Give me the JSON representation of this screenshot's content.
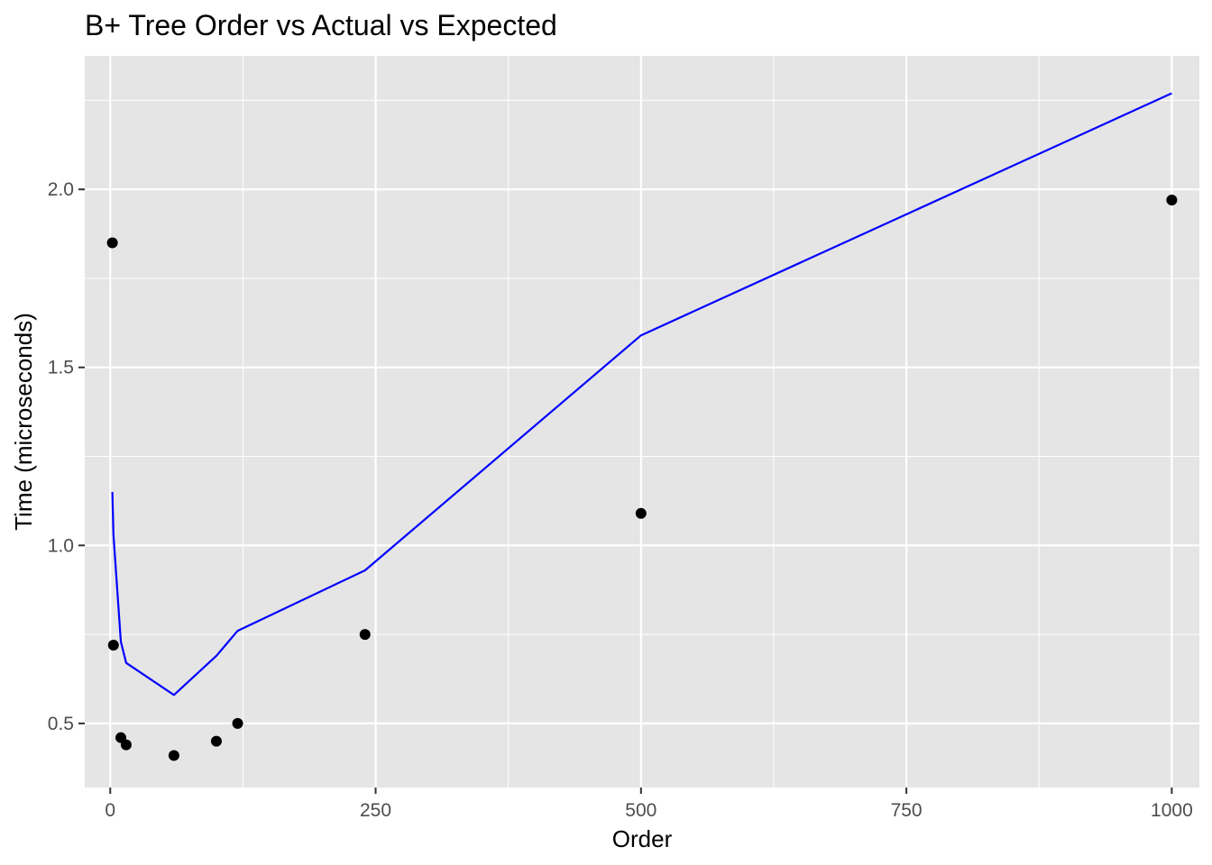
{
  "chart_data": {
    "type": "scatter",
    "title": "B+ Tree Order vs Actual vs Expected",
    "xlabel": "Order",
    "ylabel": "Time (microseconds)",
    "xlim": [
      -24,
      1026
    ],
    "ylim": [
      0.32,
      2.375
    ],
    "x_ticks": [
      0,
      250,
      500,
      750,
      1000
    ],
    "x_tick_labels": [
      "0",
      "250",
      "500",
      "750",
      "1000"
    ],
    "y_ticks": [
      0.5,
      1.0,
      1.5,
      2.0
    ],
    "y_tick_labels": [
      "0.5",
      "1.0",
      "1.5",
      "2.0"
    ],
    "grid": true,
    "panel_background": "#e5e5e5",
    "grid_color": "#ffffff",
    "series": [
      {
        "kind": "points",
        "color": "#000000",
        "x": [
          2,
          3,
          10,
          15,
          60,
          100,
          120,
          240,
          500,
          1000
        ],
        "y": [
          1.85,
          0.72,
          0.46,
          0.44,
          0.41,
          0.45,
          0.5,
          0.75,
          1.09,
          1.97
        ]
      },
      {
        "kind": "line",
        "color": "#0000ff",
        "x": [
          2,
          3,
          10,
          15,
          60,
          100,
          120,
          240,
          500,
          1000
        ],
        "y": [
          1.15,
          1.03,
          0.73,
          0.67,
          0.58,
          0.69,
          0.76,
          0.93,
          1.59,
          2.27
        ]
      }
    ]
  }
}
